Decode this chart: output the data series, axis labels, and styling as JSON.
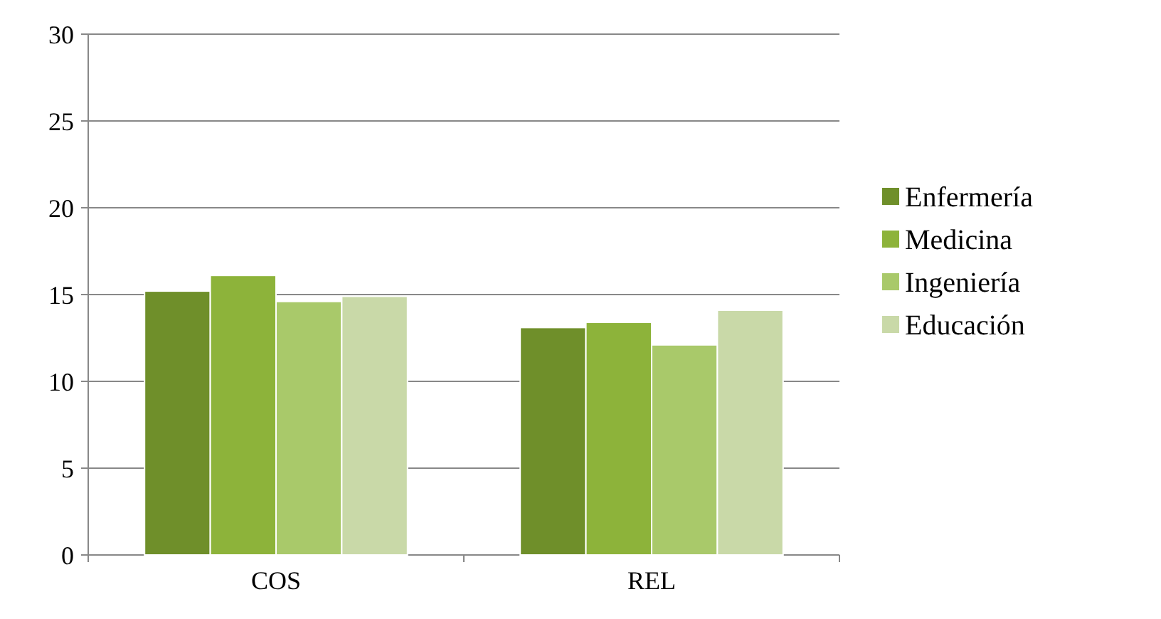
{
  "chart_data": {
    "type": "bar",
    "categories": [
      "COS",
      "REL"
    ],
    "series": [
      {
        "name": "Enfermería",
        "color": "#6f8f2a",
        "values": [
          15.2,
          13.1
        ]
      },
      {
        "name": "Medicina",
        "color": "#8db33a",
        "values": [
          16.1,
          13.4
        ]
      },
      {
        "name": "Ingeniería",
        "color": "#a9c96a",
        "values": [
          14.6,
          12.1
        ]
      },
      {
        "name": "Educación",
        "color": "#c9d9a8",
        "values": [
          14.9,
          14.1
        ]
      }
    ],
    "ylim": [
      0,
      30
    ],
    "yticks": [
      0,
      5,
      10,
      15,
      20,
      25,
      30
    ],
    "grid": "y",
    "legend": "right"
  }
}
